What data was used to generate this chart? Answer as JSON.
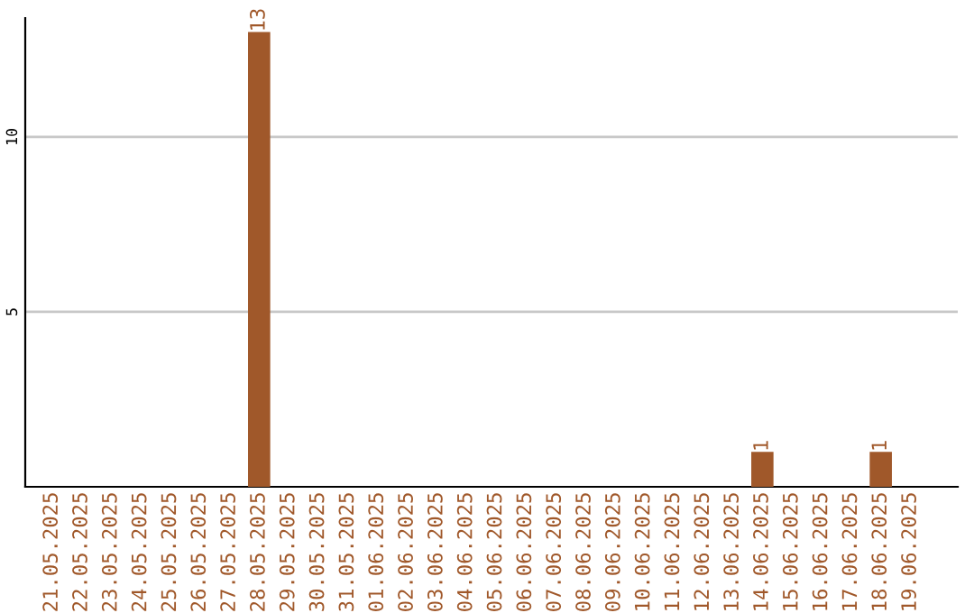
{
  "chart_data": {
    "type": "bar",
    "categories": [
      "21.05.2025",
      "22.05.2025",
      "23.05.2025",
      "24.05.2025",
      "25.05.2025",
      "26.05.2025",
      "27.05.2025",
      "28.05.2025",
      "29.05.2025",
      "30.05.2025",
      "31.05.2025",
      "01.06.2025",
      "02.06.2025",
      "03.06.2025",
      "04.06.2025",
      "05.06.2025",
      "06.06.2025",
      "07.06.2025",
      "08.06.2025",
      "09.06.2025",
      "10.06.2025",
      "11.06.2025",
      "12.06.2025",
      "13.06.2025",
      "14.06.2025",
      "15.06.2025",
      "16.06.2025",
      "17.06.2025",
      "18.06.2025",
      "19.06.2025"
    ],
    "values": [
      0,
      0,
      0,
      0,
      0,
      0,
      0,
      13,
      0,
      0,
      0,
      0,
      0,
      0,
      0,
      0,
      0,
      0,
      0,
      0,
      0,
      0,
      0,
      0,
      1,
      0,
      0,
      0,
      1,
      0
    ],
    "value_labels": [
      null,
      null,
      null,
      null,
      null,
      null,
      null,
      "13",
      null,
      null,
      null,
      null,
      null,
      null,
      null,
      null,
      null,
      null,
      null,
      null,
      null,
      null,
      null,
      null,
      "1",
      null,
      null,
      null,
      "1",
      null
    ],
    "color": "#a0582a",
    "ylim": [
      0,
      13.4
    ],
    "yticks": [
      5,
      10
    ],
    "grid": "y"
  }
}
